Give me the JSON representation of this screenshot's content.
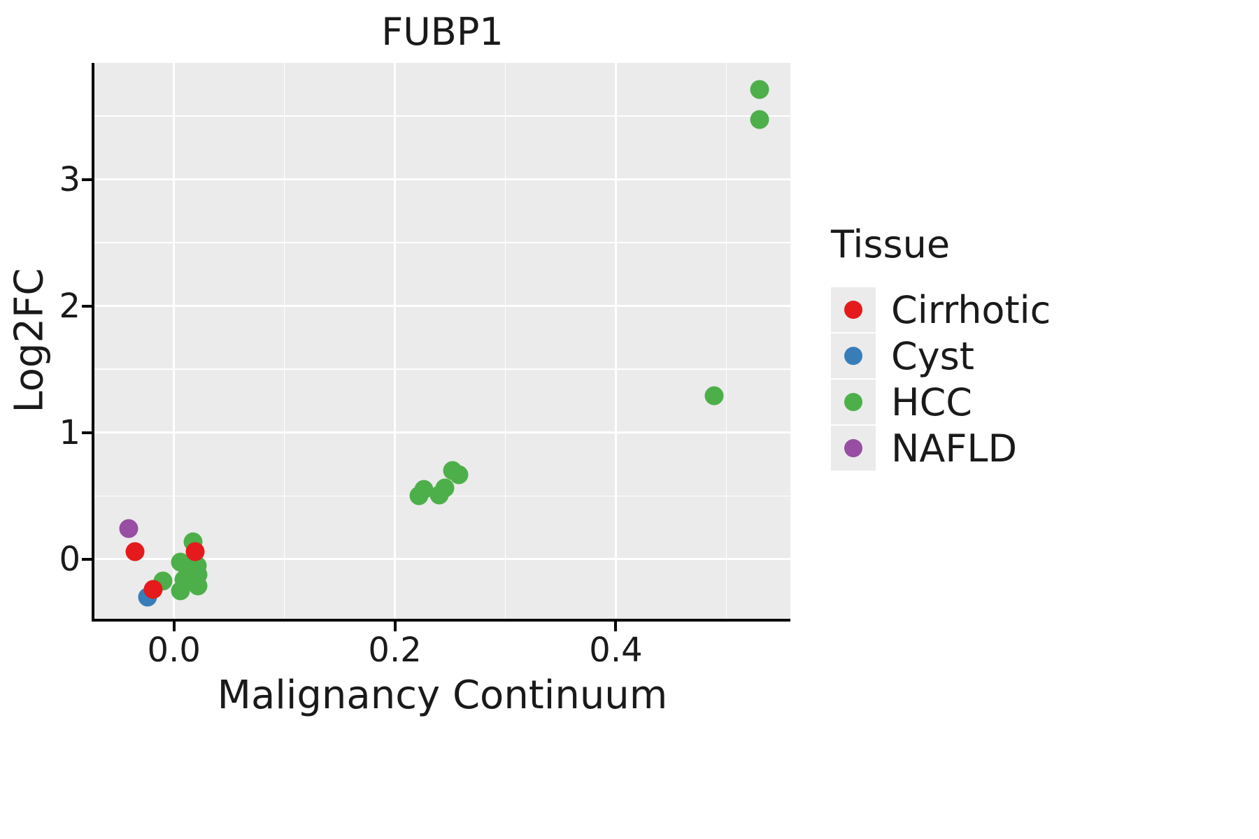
{
  "chart_data": {
    "type": "scatter",
    "title": "FUBP1",
    "xlabel": "Malignancy Continuum",
    "ylabel": "Log2FC",
    "legend_title": "Tissue",
    "xlim": [
      -0.072,
      0.558
    ],
    "ylim": [
      -0.47,
      3.92
    ],
    "x_ticks": [
      0.0,
      0.2,
      0.4
    ],
    "x_tick_labels": [
      "0.0",
      "0.2",
      "0.4"
    ],
    "x_minor_ticks": [
      0.1,
      0.3,
      0.5
    ],
    "y_ticks": [
      0,
      1,
      2,
      3
    ],
    "y_tick_labels": [
      "0",
      "1",
      "2",
      "3"
    ],
    "y_minor_ticks": [
      0.5,
      1.5,
      2.5,
      3.5
    ],
    "grid": true,
    "legend_position": "right",
    "panel_background": "#ebebeb",
    "gridline_color": "#ffffff",
    "series": [
      {
        "name": "Cirrhotic",
        "color": "#e41a1c",
        "points": [
          [
            -0.035,
            0.06
          ],
          [
            0.019,
            0.06
          ],
          [
            -0.019,
            -0.24
          ]
        ]
      },
      {
        "name": "Cyst",
        "color": "#377eb8",
        "points": [
          [
            -0.024,
            -0.3
          ]
        ]
      },
      {
        "name": "HCC",
        "color": "#4daf4a",
        "points": [
          [
            0.53,
            3.71
          ],
          [
            0.53,
            3.47
          ],
          [
            0.489,
            1.29
          ],
          [
            0.222,
            0.5
          ],
          [
            0.226,
            0.55
          ],
          [
            0.24,
            0.51
          ],
          [
            0.245,
            0.56
          ],
          [
            0.252,
            0.7
          ],
          [
            0.258,
            0.67
          ],
          [
            0.017,
            0.14
          ],
          [
            0.006,
            -0.02
          ],
          [
            0.013,
            -0.06
          ],
          [
            0.021,
            -0.05
          ],
          [
            0.022,
            -0.12
          ],
          [
            0.009,
            -0.16
          ],
          [
            -0.01,
            -0.17
          ],
          [
            0.022,
            -0.21
          ],
          [
            0.006,
            -0.25
          ]
        ]
      },
      {
        "name": "NAFLD",
        "color": "#984ea3",
        "points": [
          [
            -0.041,
            0.24
          ]
        ]
      }
    ]
  }
}
